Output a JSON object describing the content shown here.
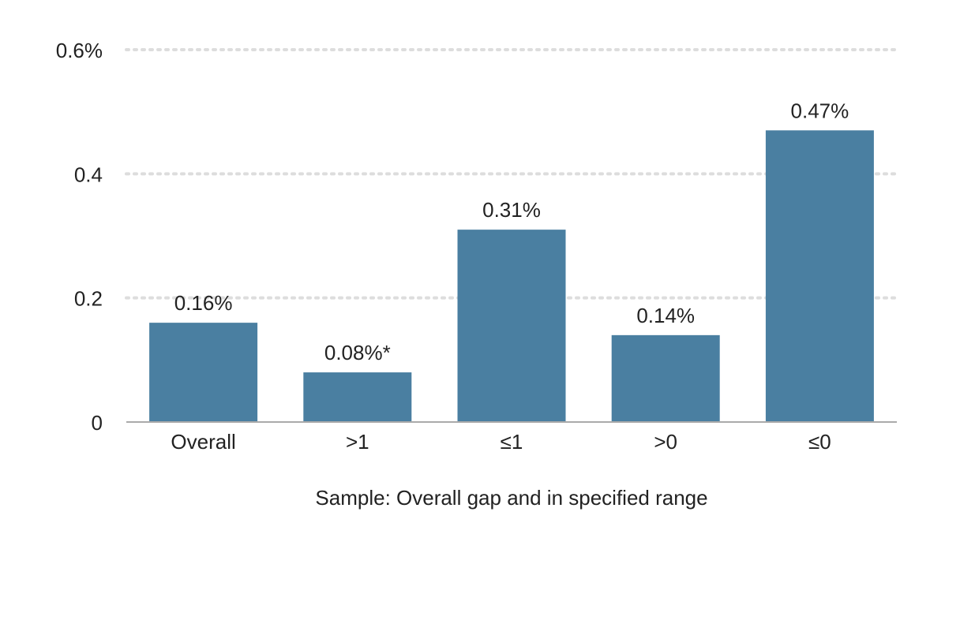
{
  "chart_data": {
    "type": "bar",
    "title": "",
    "xlabel": "Sample: Overall gap and in specified range",
    "ylabel": "",
    "categories": [
      "Overall",
      ">1",
      "≤1",
      ">0",
      "≤0"
    ],
    "values": [
      0.16,
      0.08,
      0.31,
      0.14,
      0.47
    ],
    "data_labels": [
      "0.16%",
      "0.08%*",
      "0.31%",
      "0.14%",
      "0.47%"
    ],
    "ylim": [
      0,
      0.6
    ],
    "y_ticks": [
      0,
      0.2,
      0.4,
      0.6
    ],
    "y_tick_labels": [
      "0",
      "0.2",
      "0.4",
      "0.6%"
    ],
    "grid": true,
    "grid_style": "dotted",
    "legend": "none",
    "colors": {
      "bar": "#4a7fa1",
      "grid": "#dddddd",
      "baseline": "#aaaaaa",
      "text": "#222222"
    }
  }
}
